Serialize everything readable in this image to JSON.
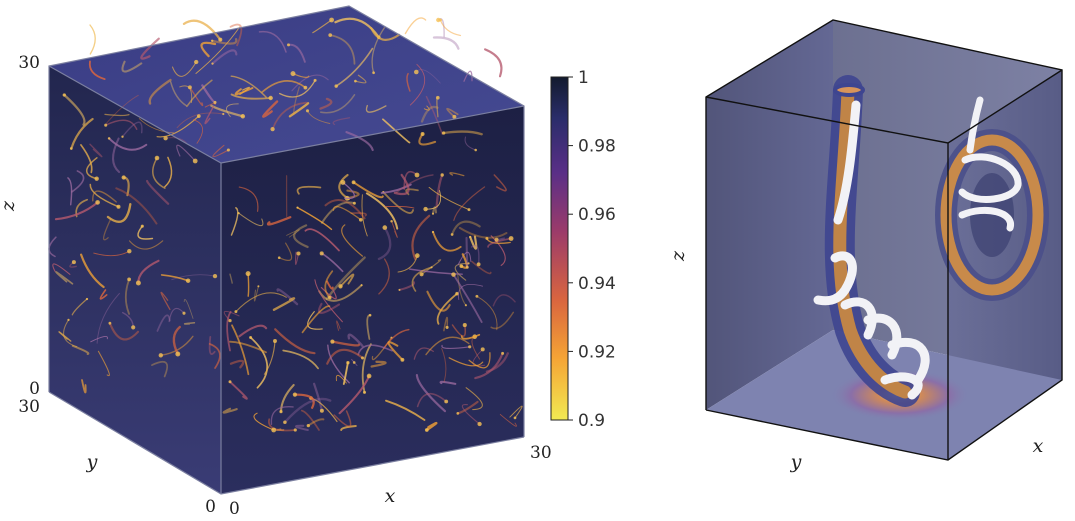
{
  "left_panel": {
    "axes": {
      "x_label": "x",
      "y_label": "y",
      "z_label": "z",
      "z_top": "30",
      "z_bottom": "0",
      "y_top": "30",
      "y_bottom": "0",
      "x_left": "0",
      "x_right": "30"
    },
    "colorbar": {
      "ticks": [
        "1",
        "0.98",
        "0.96",
        "0.94",
        "0.92",
        "0.9"
      ],
      "min": 0.9,
      "max": 1.0,
      "colors": [
        "#f2ea52",
        "#f5a435",
        "#d9653f",
        "#9b3b6a",
        "#5a2f87",
        "#2a2d6a",
        "#121a2e"
      ]
    }
  },
  "right_panel": {
    "axes": {
      "x_label": "x",
      "y_label": "y",
      "z_label": "z"
    }
  }
}
